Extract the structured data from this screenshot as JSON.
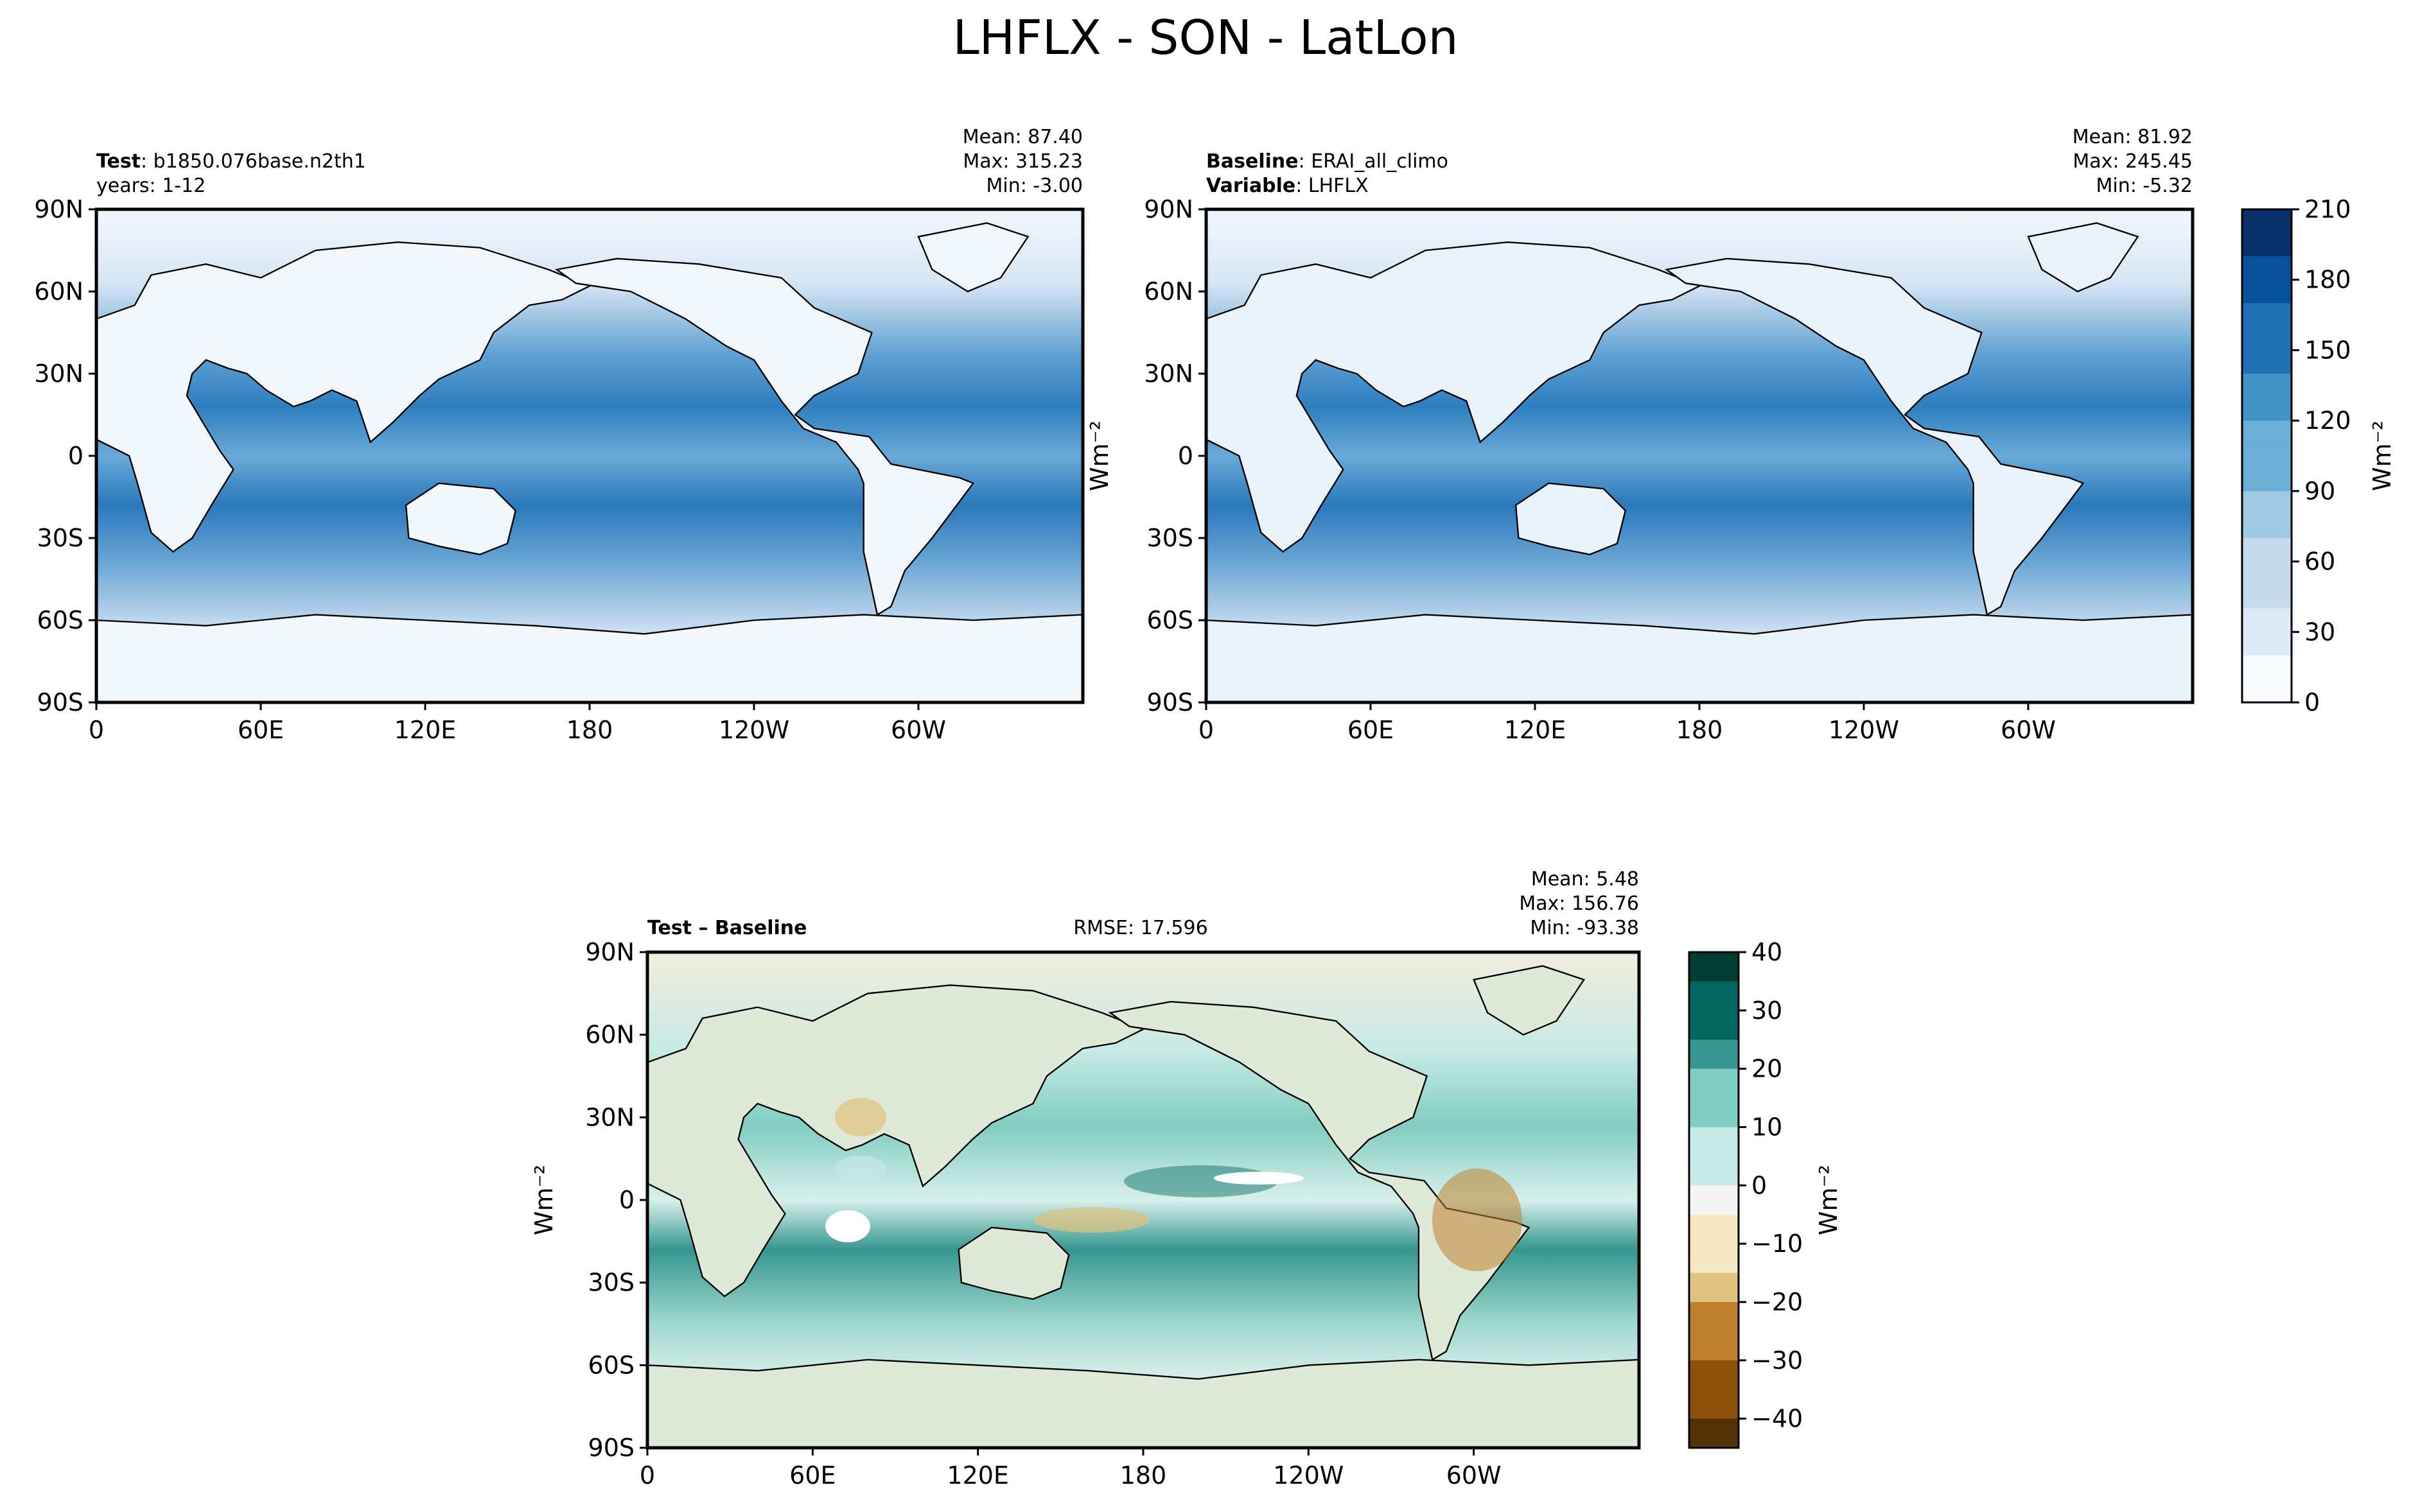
{
  "figure": {
    "title": "LHFLX - SON - LatLon"
  },
  "chart_data": [
    {
      "type": "heatmap",
      "panel": "test",
      "label_bold": "Test",
      "label_rest": ": b1850.076base.n2th1",
      "label_line2": "years: 1-12",
      "stats": [
        "Mean: 87.40",
        "Max: 315.23",
        "Min: -3.00"
      ],
      "y_ticks": [
        "90N",
        "60N",
        "30N",
        "0",
        "30S",
        "60S",
        "90S"
      ],
      "x_ticks": [
        "0",
        "60E",
        "120E",
        "180",
        "120W",
        "60W"
      ],
      "xlim": [
        0,
        360
      ],
      "ylim": [
        -90,
        90
      ],
      "colormap": "Blues",
      "value_range": [
        0,
        210
      ]
    },
    {
      "type": "heatmap",
      "panel": "baseline",
      "label_bold": "Baseline",
      "label_rest": ": ERAI_all_climo",
      "label2_bold": "Variable",
      "label2_rest": ": LHFLX",
      "stats": [
        "Mean: 81.92",
        "Max: 245.45",
        "Min: -5.32"
      ],
      "y_ticks": [
        "90N",
        "60N",
        "30N",
        "0",
        "30S",
        "60S",
        "90S"
      ],
      "x_ticks": [
        "0",
        "60E",
        "120E",
        "180",
        "120W",
        "60W"
      ],
      "xlim": [
        0,
        360
      ],
      "ylim": [
        -90,
        90
      ],
      "colormap": "Blues",
      "value_range": [
        0,
        210
      ]
    },
    {
      "type": "heatmap",
      "panel": "difference",
      "label_bold": "Test – Baseline",
      "rmse": "RMSE: 17.596",
      "stats": [
        "Mean:  5.48",
        "Max: 156.76",
        "Min: -93.38"
      ],
      "y_ticks": [
        "90N",
        "60N",
        "30N",
        "0",
        "30S",
        "60S",
        "90S"
      ],
      "x_ticks": [
        "0",
        "60E",
        "120E",
        "180",
        "120W",
        "60W"
      ],
      "xlim": [
        0,
        360
      ],
      "ylim": [
        -90,
        90
      ],
      "colormap": "BrBG",
      "value_range": [
        -45,
        40
      ]
    }
  ],
  "colorbars": {
    "main": {
      "label": "Wm⁻²",
      "ticks": [
        "210",
        "180",
        "150",
        "120",
        "90",
        "60",
        "30",
        "0"
      ],
      "levels": 21,
      "colors": [
        "#08306b",
        "#08519c",
        "#2171b5",
        "#4292c6",
        "#6baed6",
        "#9ecae1",
        "#c6dbef",
        "#deebf7",
        "#f7fbff"
      ]
    },
    "diff": {
      "label": "Wm⁻²",
      "ticks": [
        "40",
        "30",
        "20",
        "10",
        "0",
        "−10",
        "−20",
        "−30",
        "−40"
      ],
      "levels": 17,
      "colors": [
        "#003c30",
        "#01665e",
        "#35978f",
        "#80cdc1",
        "#c7eae5",
        "#f5f5f5",
        "#f6e8c3",
        "#dfc27d",
        "#bf812d",
        "#8c510a",
        "#543005"
      ]
    }
  },
  "axis_labels": {
    "units_left_top": "Wm⁻²",
    "units_left_bottom": "Wm⁻²"
  }
}
